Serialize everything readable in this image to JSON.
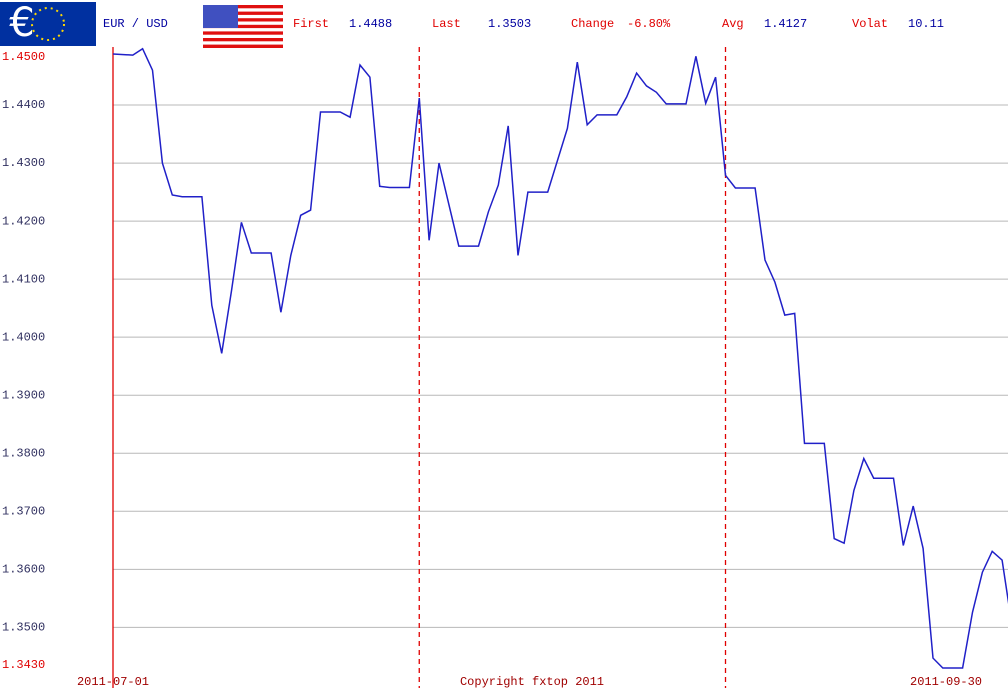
{
  "chart_data": {
    "type": "line",
    "pair": "EUR / USD",
    "stats": [
      {
        "name": "First",
        "value": 1.4488
      },
      {
        "name": "Last",
        "value": 1.3503
      },
      {
        "name": "Change",
        "value": -6.8,
        "label": "-6.80%"
      },
      {
        "name": "Avg",
        "value": 1.4127
      },
      {
        "name": "Volat",
        "value": 10.11
      }
    ],
    "copyright": "Copyright fxtop 2011",
    "x": [
      "2011-07-01",
      "2011-07-03",
      "2011-07-04",
      "2011-07-05",
      "2011-07-06",
      "2011-07-07",
      "2011-07-08",
      "2011-07-10",
      "2011-07-11",
      "2011-07-12",
      "2011-07-13",
      "2011-07-14",
      "2011-07-15",
      "2011-07-17",
      "2011-07-18",
      "2011-07-19",
      "2011-07-20",
      "2011-07-21",
      "2011-07-22",
      "2011-07-24",
      "2011-07-25",
      "2011-07-26",
      "2011-07-27",
      "2011-07-28",
      "2011-07-29",
      "2011-07-31",
      "2011-08-01",
      "2011-08-02",
      "2011-08-03",
      "2011-08-05",
      "2011-08-07",
      "2011-08-08",
      "2011-08-09",
      "2011-08-10",
      "2011-08-11",
      "2011-08-12",
      "2011-08-14",
      "2011-08-16",
      "2011-08-17",
      "2011-08-18",
      "2011-08-19",
      "2011-08-21",
      "2011-08-22",
      "2011-08-23",
      "2011-08-24",
      "2011-08-25",
      "2011-08-26",
      "2011-08-28",
      "2011-08-29",
      "2011-08-30",
      "2011-08-31",
      "2011-09-01",
      "2011-09-02",
      "2011-09-04",
      "2011-09-05",
      "2011-09-06",
      "2011-09-07",
      "2011-09-08",
      "2011-09-09",
      "2011-09-11",
      "2011-09-12",
      "2011-09-13",
      "2011-09-14",
      "2011-09-15",
      "2011-09-16",
      "2011-09-18",
      "2011-09-19",
      "2011-09-20",
      "2011-09-21",
      "2011-09-22",
      "2011-09-23",
      "2011-09-25",
      "2011-09-26",
      "2011-09-27",
      "2011-09-28",
      "2011-09-29",
      "2011-09-30"
    ],
    "series": [
      {
        "name": "EUR / USD",
        "color": "#2020c8",
        "values": [
          1.4488,
          1.4486,
          1.4497,
          1.446,
          1.43,
          1.4245,
          1.4242,
          1.4242,
          1.4055,
          1.3972,
          1.408,
          1.4198,
          1.4145,
          1.4145,
          1.4043,
          1.4141,
          1.421,
          1.4219,
          1.4388,
          1.4388,
          1.4379,
          1.4469,
          1.4448,
          1.426,
          1.4258,
          1.4258,
          1.4412,
          1.4167,
          1.43,
          1.4157,
          1.4157,
          1.4216,
          1.4262,
          1.4364,
          1.4141,
          1.425,
          1.425,
          1.436,
          1.4474,
          1.4366,
          1.4383,
          1.4383,
          1.4414,
          1.4455,
          1.4433,
          1.4422,
          1.4402,
          1.4402,
          1.4484,
          1.4403,
          1.4448,
          1.4279,
          1.4257,
          1.4257,
          1.4133,
          1.4095,
          1.4038,
          1.4041,
          1.3817,
          1.3817,
          1.3653,
          1.3645,
          1.3736,
          1.3791,
          1.3757,
          1.3757,
          1.3641,
          1.3709,
          1.3636,
          1.3447,
          1.343,
          1.343,
          1.3526,
          1.3595,
          1.3631,
          1.3616,
          1.3503
        ]
      }
    ],
    "xlim": [
      "2011-07-01",
      "2011-09-30"
    ],
    "xticks": [
      "2011-07-01",
      "2011-09-30"
    ],
    "month_lines": [
      "2011-08-01",
      "2011-09-01"
    ],
    "ylim": [
      1.343,
      1.45
    ],
    "yticks": [
      {
        "value": 1.45,
        "label": "1.4500"
      },
      {
        "value": 1.44,
        "label": "1.4400"
      },
      {
        "value": 1.43,
        "label": "1.4300"
      },
      {
        "value": 1.42,
        "label": "1.4200"
      },
      {
        "value": 1.41,
        "label": "1.4100"
      },
      {
        "value": 1.4,
        "label": "1.4000"
      },
      {
        "value": 1.39,
        "label": "1.3900"
      },
      {
        "value": 1.38,
        "label": "1.3800"
      },
      {
        "value": 1.37,
        "label": "1.3700"
      },
      {
        "value": 1.36,
        "label": "1.3600"
      },
      {
        "value": 1.35,
        "label": "1.3500"
      },
      {
        "value": 1.343,
        "label": "1.3430"
      }
    ],
    "grid": true
  }
}
